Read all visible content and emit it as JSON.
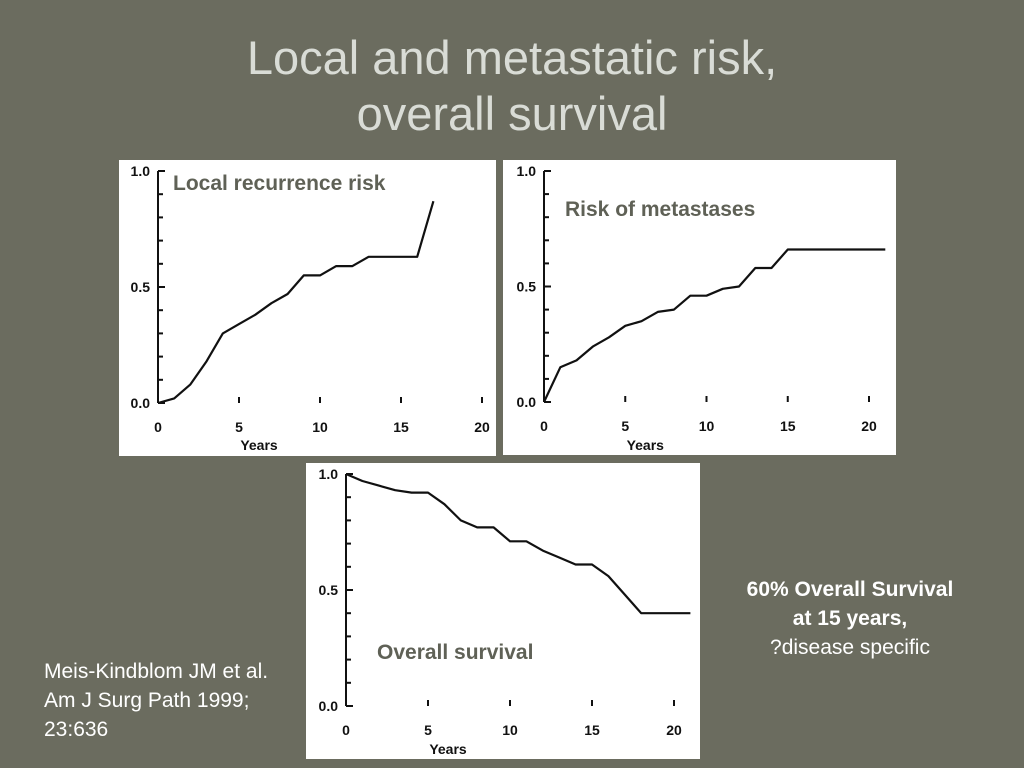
{
  "slide": {
    "title_line1": "Local and metastatic risk,",
    "title_line2": "overall survival",
    "note_line1": "60% Overall Survival",
    "note_line2": "at 15 years,",
    "note_line3": "?disease specific",
    "citation": "Meis-Kindblom JM et al. Am J Surg Path 1999; 23:636"
  },
  "chart_data": [
    {
      "type": "line",
      "title": "Local recurrence risk",
      "xlabel": "Years",
      "ylabel": "",
      "xlim": [
        0,
        20
      ],
      "ylim": [
        0,
        1.0
      ],
      "xticks": [
        0,
        5,
        10,
        15,
        20
      ],
      "yticks": [
        0.0,
        0.5,
        1.0
      ],
      "ytick_labels": [
        "0.0",
        "0.5",
        "1.0"
      ],
      "series": [
        {
          "x": [
            0,
            1,
            2,
            3,
            4,
            5,
            6,
            7,
            8,
            9,
            10,
            11,
            12,
            13,
            14,
            15,
            16,
            17
          ],
          "y": [
            0.0,
            0.02,
            0.08,
            0.18,
            0.3,
            0.34,
            0.38,
            0.43,
            0.47,
            0.55,
            0.55,
            0.59,
            0.59,
            0.63,
            0.63,
            0.63,
            0.63,
            0.87
          ]
        }
      ]
    },
    {
      "type": "line",
      "title": "Risk of metastases",
      "xlabel": "Years",
      "ylabel": "",
      "xlim": [
        0,
        20
      ],
      "ylim": [
        0,
        1.0
      ],
      "xticks": [
        0,
        5,
        10,
        15,
        20
      ],
      "yticks": [
        0.0,
        0.5,
        1.0
      ],
      "ytick_labels": [
        "0.0",
        "0.5",
        "1.0"
      ],
      "series": [
        {
          "x": [
            0,
            1,
            2,
            3,
            4,
            5,
            6,
            7,
            8,
            9,
            10,
            11,
            12,
            13,
            14,
            15,
            16,
            17,
            18,
            19,
            20,
            21
          ],
          "y": [
            0.0,
            0.15,
            0.18,
            0.24,
            0.28,
            0.33,
            0.35,
            0.39,
            0.4,
            0.46,
            0.46,
            0.49,
            0.5,
            0.58,
            0.58,
            0.66,
            0.66,
            0.66,
            0.66,
            0.66,
            0.66,
            0.66
          ]
        }
      ]
    },
    {
      "type": "line",
      "title": "Overall survival",
      "xlabel": "Years",
      "ylabel": "",
      "xlim": [
        0,
        20
      ],
      "ylim": [
        0,
        1.0
      ],
      "xticks": [
        0,
        5,
        10,
        15,
        20
      ],
      "yticks": [
        0.0,
        0.5,
        1.0
      ],
      "ytick_labels": [
        "0.0",
        "0.5",
        "1.0"
      ],
      "series": [
        {
          "x": [
            0,
            1,
            2,
            3,
            4,
            5,
            6,
            7,
            8,
            9,
            10,
            11,
            12,
            13,
            14,
            15,
            16,
            17,
            18,
            19,
            20,
            21
          ],
          "y": [
            1.0,
            0.97,
            0.95,
            0.93,
            0.92,
            0.92,
            0.87,
            0.8,
            0.77,
            0.77,
            0.71,
            0.71,
            0.67,
            0.64,
            0.61,
            0.61,
            0.56,
            0.48,
            0.4,
            0.4,
            0.4,
            0.4
          ]
        }
      ]
    }
  ]
}
